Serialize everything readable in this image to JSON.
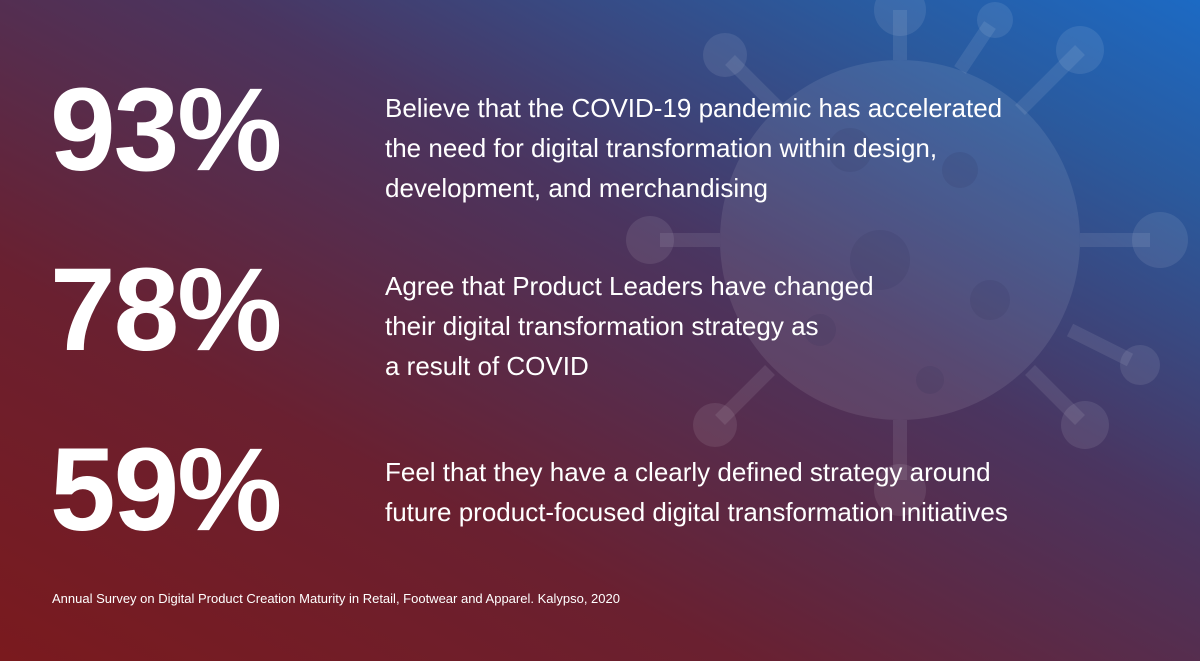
{
  "stats": [
    {
      "value": "93%",
      "lines": [
        "Believe that the COVID-19 pandemic has accelerated",
        "the need for digital transformation within design,",
        "development, and merchandising"
      ]
    },
    {
      "value": "78%",
      "lines": [
        "Agree that Product Leaders have changed",
        "their digital transformation strategy as",
        "a result of COVID"
      ]
    },
    {
      "value": "59%",
      "lines": [
        "Feel that they have a clearly defined strategy around",
        "future product-focused digital transformation initiatives"
      ]
    }
  ],
  "source": "Annual Survey on Digital Product Creation Maturity in Retail, Footwear and Apparel. Kalypso, 2020",
  "colors": {
    "text": "#ffffff",
    "red": "#7a1a1e",
    "blue": "#1c6ac4"
  },
  "icons": {
    "background": "virus-icon"
  }
}
